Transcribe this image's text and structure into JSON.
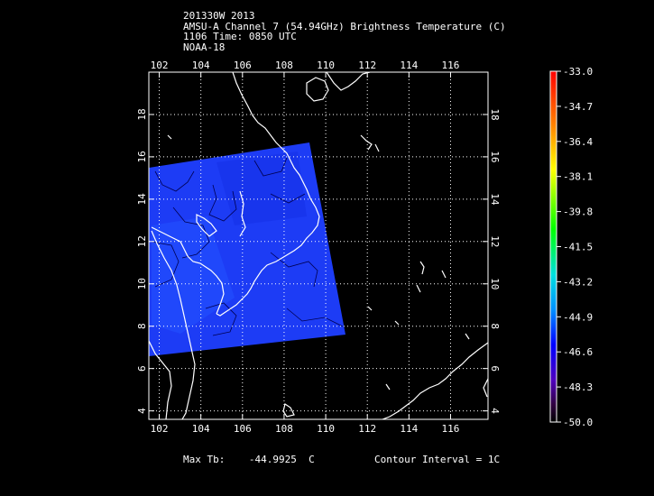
{
  "header": {
    "line1": "201330W 2013",
    "line2": "AMSU-A Channel 7 (54.94GHz) Brightness Temperature (C)",
    "line3": "1106 Time: 0850 UTC",
    "line4": "NOAA-18"
  },
  "map": {
    "lon_min": 101.5,
    "lon_max": 117.8,
    "lat_min": 3.6,
    "lat_max": 20.0,
    "lon_ticks": [
      "102",
      "104",
      "106",
      "108",
      "110",
      "112",
      "114",
      "116"
    ],
    "lat_ticks": [
      "4",
      "6",
      "8",
      "10",
      "12",
      "14",
      "16",
      "18"
    ],
    "swath_color": "#1c3cff",
    "coast_color": "#ffffff",
    "grid": "dotted"
  },
  "colorbar": {
    "labels": [
      "-33.0",
      "-34.7",
      "-36.4",
      "-38.1",
      "-39.8",
      "-41.5",
      "-43.2",
      "-44.9",
      "-46.6",
      "-48.3",
      "-50.0"
    ]
  },
  "footer": {
    "max_tb": "Max Tb:    -44.9925  C",
    "contour": "Contour Interval = 1C"
  }
}
